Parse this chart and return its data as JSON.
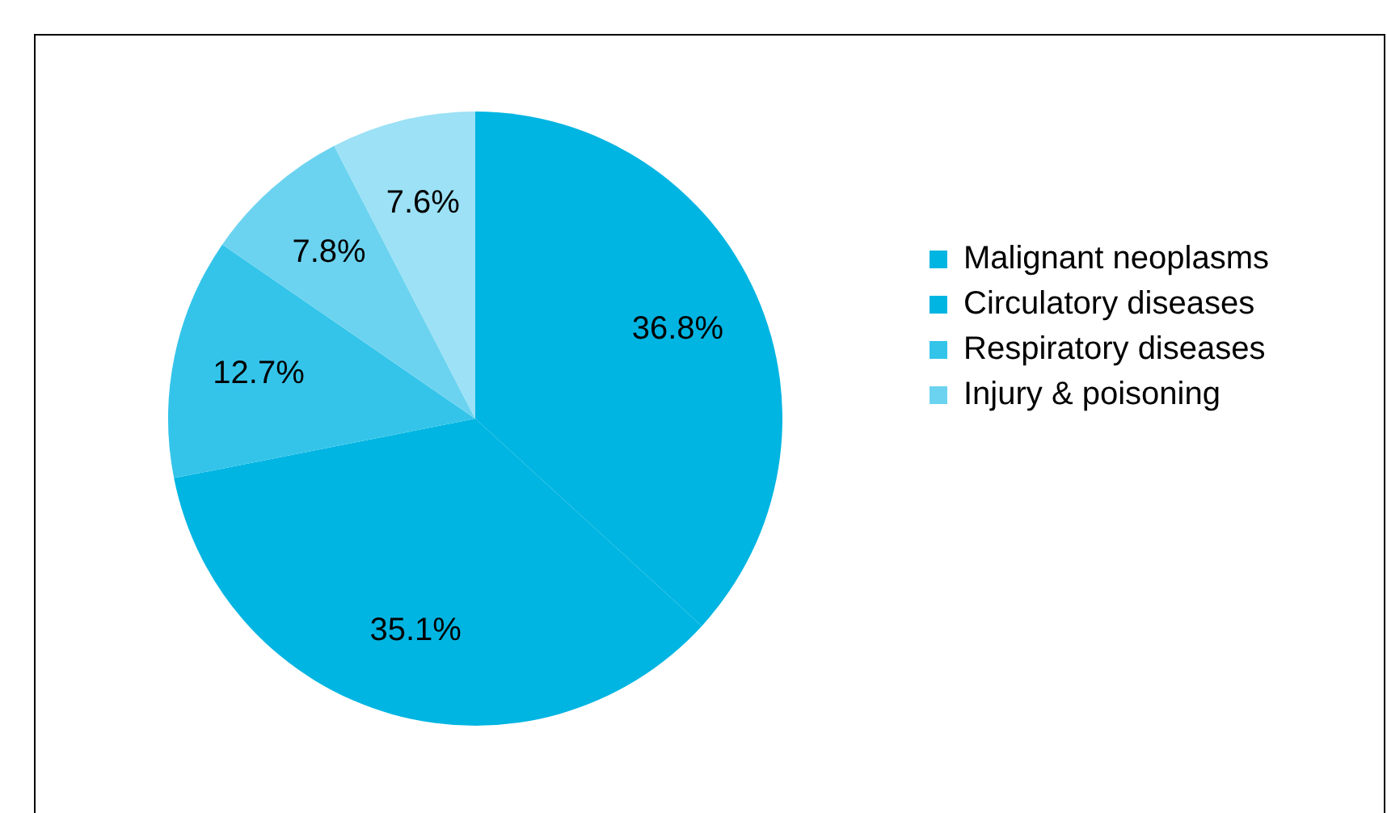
{
  "chart_data": {
    "type": "pie",
    "categories": [
      "Malignant neoplasms",
      "Circulatory diseases",
      "Respiratory diseases",
      "Injury & poisoning",
      null
    ],
    "values": [
      36.8,
      35.1,
      12.7,
      7.8,
      7.6
    ],
    "colors": [
      "#00b5e2",
      "#00b5e2",
      "#34c4ea",
      "#6bd3f0",
      "#9ce1f5"
    ],
    "value_labels": [
      "36.8%",
      "35.1%",
      "12.7%",
      "7.8%",
      "7.6%"
    ],
    "legend": "right"
  }
}
